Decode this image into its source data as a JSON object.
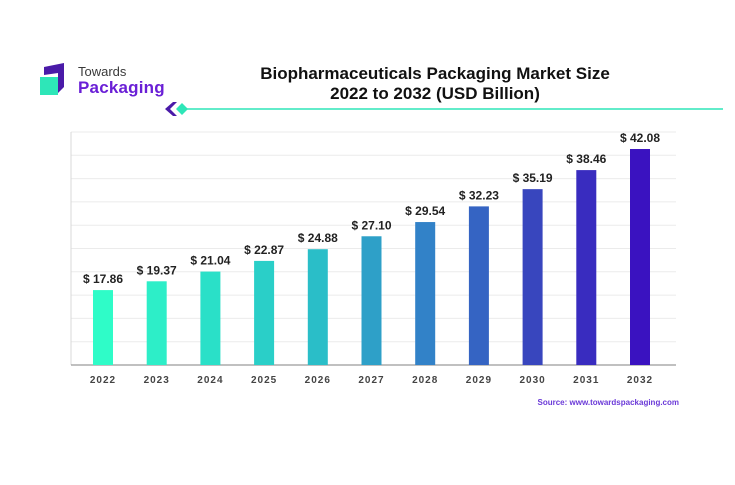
{
  "logo": {
    "line1": "Towards",
    "line2": "Packaging"
  },
  "header": {
    "title_line1": "Biopharmaceuticals Packaging Market Size",
    "title_line2": "2022 to 2032 (USD Billion)"
  },
  "source": "Source: www.towardspackaging.com",
  "colors": {
    "brand_purple": "#6a1fd6",
    "brand_teal": "#2ee6b8",
    "bar_start": "#2ffcc8",
    "bar_end": "#3a12c0"
  },
  "chart_data": {
    "type": "bar",
    "title": "Biopharmaceuticals Packaging Market Size 2022 to 2032 (USD Billion)",
    "xlabel": "",
    "ylabel": "USD Billion",
    "categories": [
      "2022",
      "2023",
      "2024",
      "2025",
      "2026",
      "2027",
      "2028",
      "2029",
      "2030",
      "2031",
      "2032"
    ],
    "values": [
      17.86,
      19.37,
      21.04,
      22.87,
      24.88,
      27.1,
      29.54,
      32.23,
      35.19,
      38.46,
      42.08
    ],
    "labels": [
      "$ 17.86",
      "$ 19.37",
      "$ 21.04",
      "$ 22.87",
      "$ 24.88",
      "$ 27.10",
      "$ 29.54",
      "$ 32.23",
      "$ 35.19",
      "$ 38.46",
      "$ 42.08"
    ],
    "ylim": [
      5,
      45
    ],
    "grid": true,
    "legend": "none"
  }
}
